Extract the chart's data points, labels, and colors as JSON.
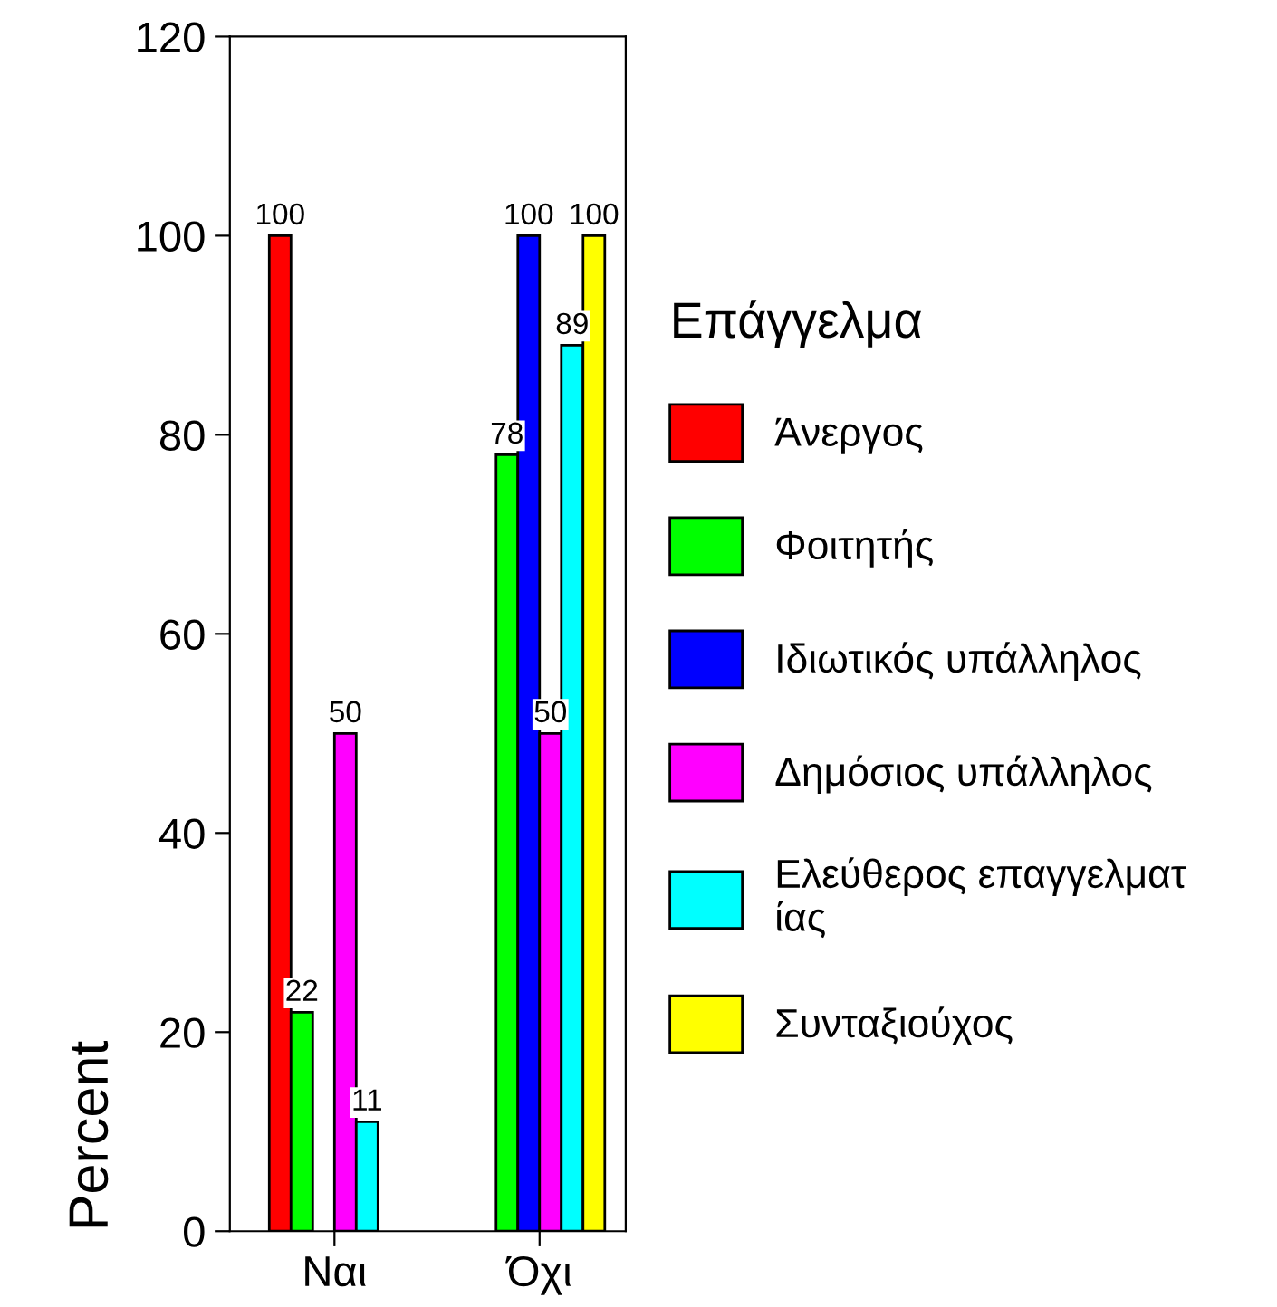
{
  "chart_data": {
    "type": "bar",
    "ylabel": "Percent",
    "legend_title": "Επάγγελμα",
    "categories": [
      "Ναι",
      "Όχι"
    ],
    "series": [
      {
        "name": "Άνεργος",
        "color": "#ff0000",
        "values": [
          100,
          null
        ]
      },
      {
        "name": "Φοιτητής",
        "color": "#00ff00",
        "values": [
          22,
          78
        ]
      },
      {
        "name": "Ιδιωτικός υπάλληλος",
        "color": "#0000ff",
        "values": [
          null,
          100
        ]
      },
      {
        "name": "Δημόσιος υπάλληλος",
        "color": "#ff00ff",
        "values": [
          50,
          50
        ]
      },
      {
        "name": "Ελεύθερος επαγγελματ\nίας",
        "color": "#00ffff",
        "values": [
          11,
          89
        ]
      },
      {
        "name": "Συνταξιούχος",
        "color": "#ffff00",
        "values": [
          null,
          100
        ]
      }
    ],
    "ylim": [
      0,
      120
    ],
    "yticks": [
      0,
      20,
      40,
      60,
      80,
      100,
      120
    ],
    "data_labels": true,
    "legend": "right",
    "grid": false
  }
}
